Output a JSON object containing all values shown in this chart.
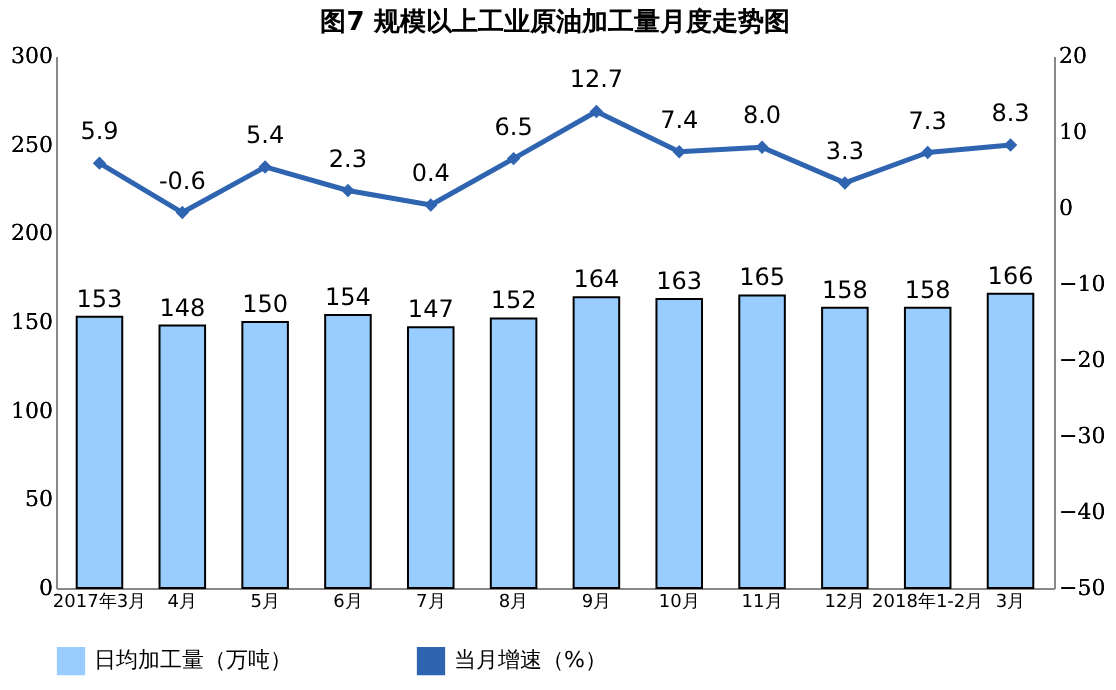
{
  "chart_data": {
    "type": "bar",
    "title": "图7  规模以上工业原油加工量月度走势图",
    "categories": [
      "2017年3月",
      "4月",
      "5月",
      "6月",
      "7月",
      "8月",
      "9月",
      "10月",
      "11月",
      "12月",
      "2018年1-2月",
      "3月"
    ],
    "series": [
      {
        "name": "日均加工量（万吨）",
        "color": "#99ccff",
        "values": [
          153,
          148,
          150,
          154,
          147,
          152,
          164,
          163,
          165,
          158,
          158,
          166
        ]
      },
      {
        "name": "当月增速（%）",
        "type": "line",
        "axis": "y2",
        "color": "#2e64b0",
        "marker": "diamond",
        "values": [
          5.9,
          -0.6,
          5.4,
          2.3,
          0.4,
          6.5,
          12.7,
          7.4,
          8.0,
          3.3,
          7.3,
          8.3
        ],
        "value_labels": [
          "5.9",
          "-0.6",
          "5.4",
          "2.3",
          "0.4",
          "6.5",
          "12.7",
          "7.4",
          "8.0",
          "3.3",
          "7.3",
          "8.3"
        ]
      }
    ],
    "ylim": [
      0,
      300
    ],
    "yticks": [
      0,
      50,
      100,
      150,
      200,
      250,
      300
    ],
    "y2lim": [
      -50,
      20
    ],
    "y2ticks": [
      -50,
      -40,
      -30,
      -20,
      -10,
      0,
      10,
      20
    ],
    "data_labels": true,
    "grid": false,
    "legend": "bottom"
  }
}
